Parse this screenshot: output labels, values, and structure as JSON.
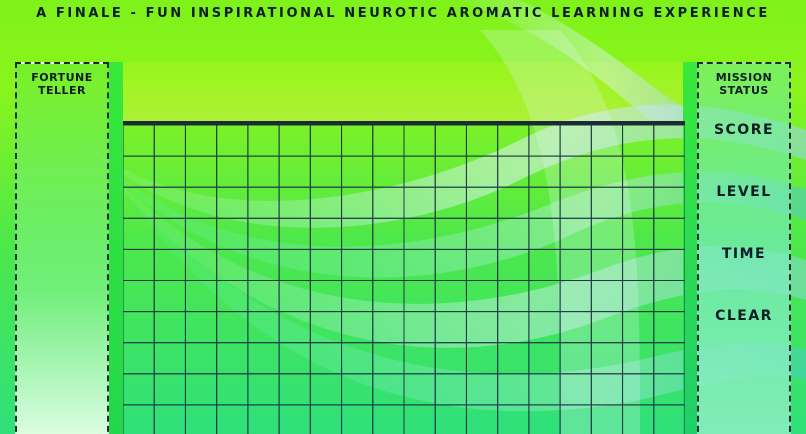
{
  "header": {
    "title": "A Finale - Fun Inspirational Neurotic Aromatic Learning Experience"
  },
  "fortune_teller": {
    "title_line1": "Fortune",
    "title_line2": "Teller"
  },
  "mission_status": {
    "title_line1": "Mission",
    "title_line2": "Status",
    "score_label": "Score",
    "level_label": "Level",
    "time_label": "Time",
    "clear_label": "Clear"
  },
  "board": {
    "columns": 18,
    "rows": 10,
    "grid_color": "#1c3a44",
    "top_border_color": "#1c2a38"
  },
  "colors": {
    "background_top": "#8af51c",
    "background_bottom": "#2fe07a",
    "text": "#0b1e24"
  }
}
